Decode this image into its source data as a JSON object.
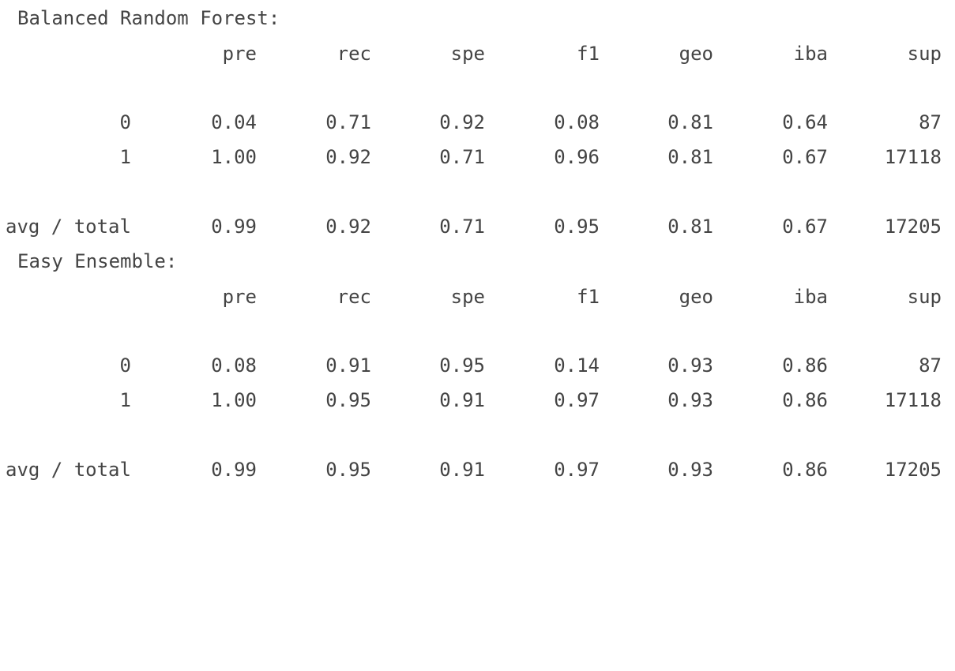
{
  "reports": [
    {
      "title": "Balanced Random Forest:",
      "header": [
        "pre",
        "rec",
        "spe",
        "f1",
        "geo",
        "iba",
        "sup"
      ],
      "rows": [
        {
          "label": "0",
          "values": [
            "0.04",
            "0.71",
            "0.92",
            "0.08",
            "0.81",
            "0.64",
            "87"
          ]
        },
        {
          "label": "1",
          "values": [
            "1.00",
            "0.92",
            "0.71",
            "0.96",
            "0.81",
            "0.67",
            "17118"
          ]
        }
      ],
      "total": {
        "label": "avg / total",
        "values": [
          "0.99",
          "0.92",
          "0.71",
          "0.95",
          "0.81",
          "0.67",
          "17205"
        ]
      }
    },
    {
      "title": "Easy Ensemble:",
      "header": [
        "pre",
        "rec",
        "spe",
        "f1",
        "geo",
        "iba",
        "sup"
      ],
      "rows": [
        {
          "label": "0",
          "values": [
            "0.08",
            "0.91",
            "0.95",
            "0.14",
            "0.93",
            "0.86",
            "87"
          ]
        },
        {
          "label": "1",
          "values": [
            "1.00",
            "0.95",
            "0.91",
            "0.97",
            "0.93",
            "0.86",
            "17118"
          ]
        }
      ],
      "total": {
        "label": "avg / total",
        "values": [
          "0.99",
          "0.95",
          "0.91",
          "0.97",
          "0.93",
          "0.86",
          "17205"
        ]
      }
    }
  ]
}
